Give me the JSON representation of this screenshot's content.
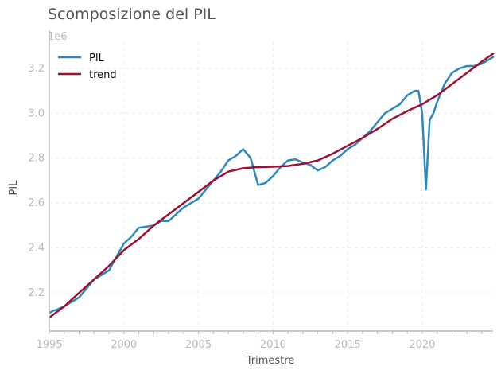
{
  "chart_data": {
    "type": "line",
    "title": "Scomposizione del PIL",
    "xlabel": "Trimestre",
    "ylabel": "PIL",
    "y_scale_label": "1e6",
    "xlim": [
      1995.0,
      2024.75
    ],
    "ylim": [
      2.03,
      3.32
    ],
    "x_ticks": [
      1995,
      2000,
      2005,
      2010,
      2015,
      2020
    ],
    "y_ticks": [
      2.2,
      2.4,
      2.6,
      2.8,
      3.0,
      3.2
    ],
    "grid": true,
    "legend_position": "top-left",
    "series": [
      {
        "name": "PIL",
        "color": "#2e88bc",
        "x": [
          1995.0,
          1995.25,
          1995.5,
          1996.0,
          1996.5,
          1997.0,
          1997.5,
          1998.0,
          1998.5,
          1999.0,
          1999.5,
          2000.0,
          2000.5,
          2001.0,
          2001.5,
          2002.0,
          2002.5,
          2003.0,
          2003.5,
          2004.0,
          2004.5,
          2005.0,
          2005.5,
          2006.0,
          2006.5,
          2007.0,
          2007.5,
          2008.0,
          2008.5,
          2008.75,
          2009.0,
          2009.25,
          2009.5,
          2010.0,
          2010.5,
          2011.0,
          2011.5,
          2012.0,
          2012.5,
          2013.0,
          2013.5,
          2014.0,
          2014.5,
          2015.0,
          2015.5,
          2016.0,
          2016.5,
          2017.0,
          2017.5,
          2018.0,
          2018.5,
          2019.0,
          2019.25,
          2019.5,
          2019.75,
          2020.0,
          2020.25,
          2020.5,
          2020.75,
          2021.0,
          2021.5,
          2022.0,
          2022.5,
          2023.0,
          2023.5,
          2024.0,
          2024.5,
          2024.75
        ],
        "y": [
          2.11,
          2.12,
          2.125,
          2.14,
          2.16,
          2.18,
          2.22,
          2.26,
          2.28,
          2.3,
          2.36,
          2.42,
          2.45,
          2.49,
          2.495,
          2.5,
          2.52,
          2.52,
          2.55,
          2.58,
          2.6,
          2.62,
          2.66,
          2.7,
          2.74,
          2.79,
          2.81,
          2.84,
          2.8,
          2.74,
          2.68,
          2.685,
          2.69,
          2.72,
          2.76,
          2.79,
          2.795,
          2.78,
          2.77,
          2.745,
          2.76,
          2.79,
          2.81,
          2.84,
          2.86,
          2.89,
          2.92,
          2.96,
          3.0,
          3.02,
          3.04,
          3.08,
          3.09,
          3.1,
          3.1,
          3.0,
          2.66,
          2.97,
          3.0,
          3.05,
          3.13,
          3.18,
          3.2,
          3.21,
          3.21,
          3.22,
          3.24,
          3.25
        ]
      },
      {
        "name": "trend",
        "color": "#9e1030",
        "x": [
          1995.0,
          1996.0,
          1997.0,
          1998.0,
          1999.0,
          2000.0,
          2001.0,
          2002.0,
          2003.0,
          2004.0,
          2005.0,
          2006.0,
          2007.0,
          2008.0,
          2009.0,
          2010.0,
          2011.0,
          2012.0,
          2013.0,
          2014.0,
          2015.0,
          2016.0,
          2017.0,
          2018.0,
          2019.0,
          2020.0,
          2021.0,
          2022.0,
          2023.0,
          2024.0,
          2024.75
        ],
        "y": [
          2.09,
          2.14,
          2.2,
          2.26,
          2.32,
          2.39,
          2.44,
          2.5,
          2.55,
          2.6,
          2.65,
          2.7,
          2.74,
          2.755,
          2.76,
          2.762,
          2.765,
          2.775,
          2.79,
          2.82,
          2.855,
          2.89,
          2.93,
          2.975,
          3.01,
          3.04,
          3.08,
          3.13,
          3.18,
          3.23,
          3.265
        ]
      }
    ]
  }
}
